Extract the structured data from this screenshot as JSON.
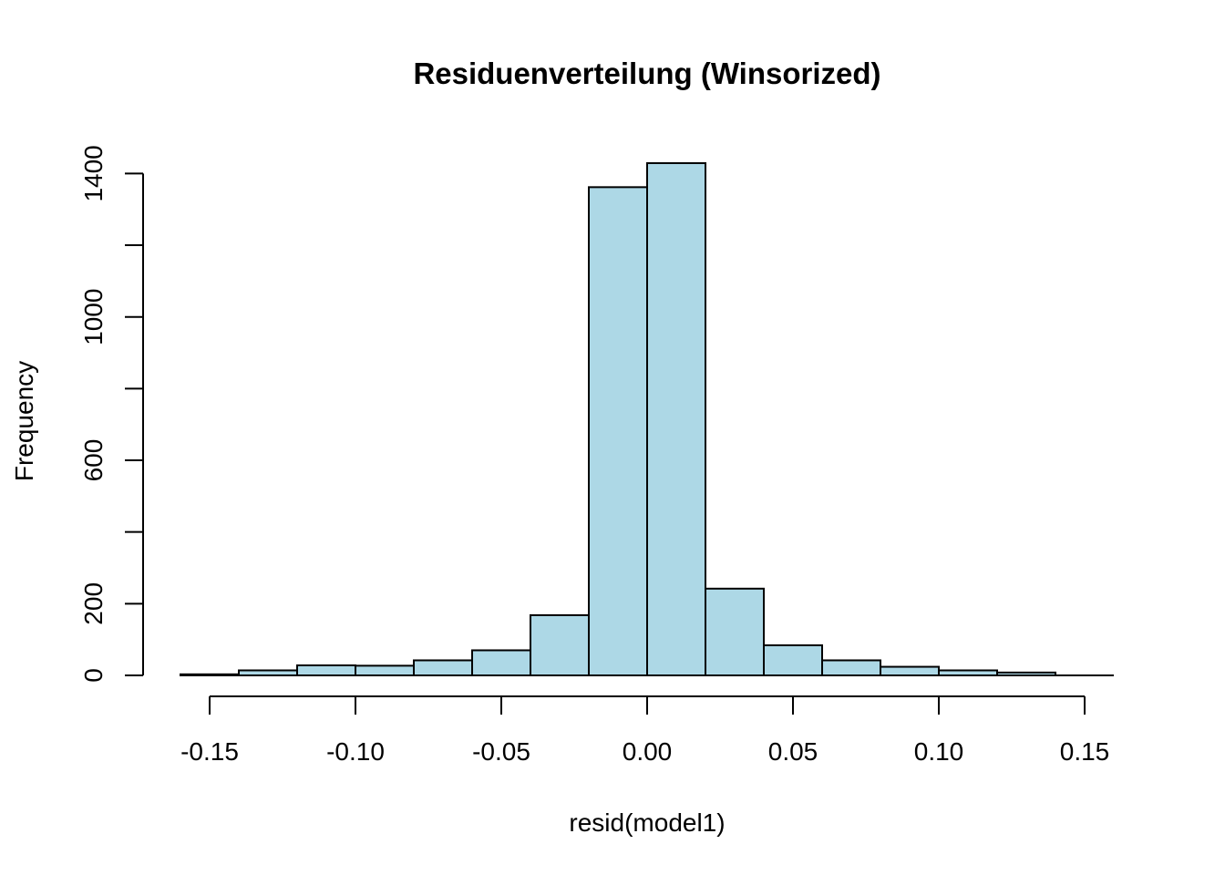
{
  "chart_data": {
    "type": "bar",
    "title": "Residuenverteilung (Winsorized)",
    "xlabel": "resid(model1)",
    "ylabel": "Frequency",
    "bin_edges": [
      -0.16,
      -0.14,
      -0.12,
      -0.1,
      -0.08,
      -0.06,
      -0.04,
      -0.02,
      0.0,
      0.02,
      0.04,
      0.06,
      0.08,
      0.1,
      0.12,
      0.14,
      0.16
    ],
    "values": [
      3,
      14,
      28,
      27,
      42,
      70,
      168,
      1362,
      1429,
      242,
      84,
      42,
      24,
      14,
      8,
      0
    ],
    "xlim": [
      -0.16,
      0.16
    ],
    "ylim": [
      0,
      1429
    ],
    "x_ticks": [
      -0.15,
      -0.1,
      -0.05,
      0.0,
      0.05,
      0.1,
      0.15
    ],
    "x_tick_labels": [
      "-0.15",
      "-0.10",
      "-0.05",
      "0.00",
      "0.05",
      "0.10",
      "0.15"
    ],
    "y_ticks": [
      0,
      200,
      400,
      600,
      800,
      1000,
      1200,
      1400
    ],
    "y_tick_labels": [
      "0",
      "200",
      "",
      "600",
      "",
      "1000",
      "",
      "1400"
    ],
    "bar_color": "#add8e6",
    "edge_color": "#000000",
    "grid": false,
    "legend": "none"
  }
}
